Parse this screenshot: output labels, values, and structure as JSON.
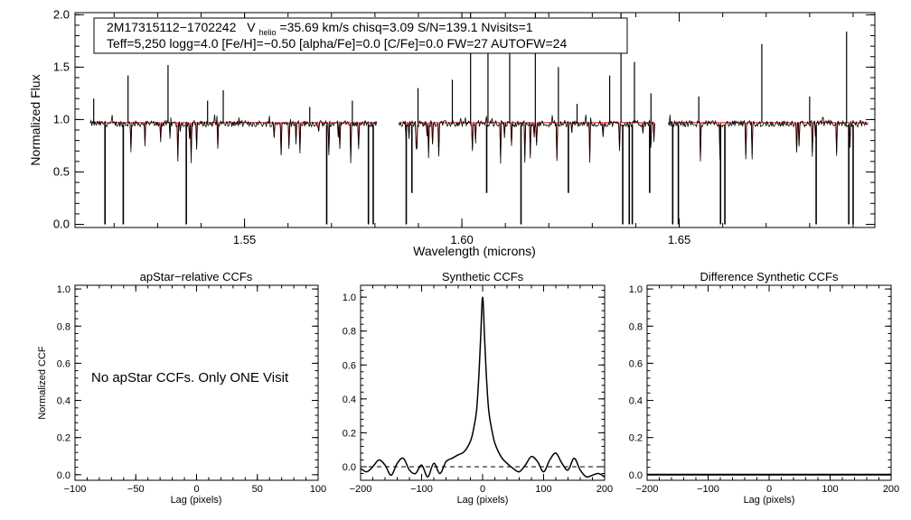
{
  "chart_data": [
    {
      "type": "line",
      "id": "spectrum",
      "title": "",
      "xlabel": "Wavelength (microns)",
      "ylabel": "Normalized Flux",
      "xlim": [
        1.511,
        1.695
      ],
      "ylim": [
        -0.03,
        2.02
      ],
      "xticks": [
        1.55,
        1.6,
        1.65
      ],
      "xtick_labels": [
        "1.55",
        "1.60",
        "1.65"
      ],
      "yticks": [
        0.0,
        0.5,
        1.0,
        1.5,
        2.0
      ],
      "ytick_labels": [
        "0.0",
        "0.5",
        "1.0",
        "1.5",
        "2.0"
      ],
      "legend_box": {
        "line1": {
          "star": "2M17315112−1702242",
          "v": "V",
          "v_sub": "helio",
          "v_rest": "=35.69 km/s  chisq=3.09  S/N=139.1  Nvisits=1"
        },
        "line2": "Teff=5,250 logg=4.0 [Fe/H]=−0.50 [alpha/Fe]=0.0 [C/Fe]=0.0 FW=27 AUTOFW=24"
      },
      "chips": [
        [
          1.5145,
          1.5805
        ],
        [
          1.5855,
          1.6445
        ],
        [
          1.6475,
          1.6935
        ]
      ],
      "observed_color": "#000000",
      "model_color": "#d00000",
      "absorption_lines": [
        {
          "x": 1.5179,
          "y": 0.0
        },
        {
          "x": 1.5221,
          "y": 0.0
        },
        {
          "x": 1.5366,
          "y": 0.0
        },
        {
          "x": 1.5689,
          "y": 0.0
        },
        {
          "x": 1.5785,
          "y": 0.0
        },
        {
          "x": 1.5796,
          "y": 0.0
        },
        {
          "x": 1.5872,
          "y": 0.0
        },
        {
          "x": 1.5885,
          "y": 0.3
        },
        {
          "x": 1.6057,
          "y": 0.3
        },
        {
          "x": 1.6136,
          "y": 0.0
        },
        {
          "x": 1.6245,
          "y": 0.3
        },
        {
          "x": 1.637,
          "y": 0.0
        },
        {
          "x": 1.6385,
          "y": 0.0
        },
        {
          "x": 1.6392,
          "y": 0.0
        },
        {
          "x": 1.6432,
          "y": 0.3
        },
        {
          "x": 1.6485,
          "y": 0.0
        },
        {
          "x": 1.6498,
          "y": 0.0
        },
        {
          "x": 1.6595,
          "y": 0.0
        },
        {
          "x": 1.6605,
          "y": 0.0
        },
        {
          "x": 1.6815,
          "y": 0.0
        },
        {
          "x": 1.689,
          "y": 0.0
        },
        {
          "x": 1.69,
          "y": 0.0
        }
      ],
      "emission_spikes": [
        {
          "x": 1.5153,
          "y": 1.2
        },
        {
          "x": 1.5232,
          "y": 1.42
        },
        {
          "x": 1.5324,
          "y": 1.52
        },
        {
          "x": 1.5415,
          "y": 1.18
        },
        {
          "x": 1.5451,
          "y": 1.28
        },
        {
          "x": 1.565,
          "y": 1.12
        },
        {
          "x": 1.5748,
          "y": 1.18
        },
        {
          "x": 1.5899,
          "y": 1.3
        },
        {
          "x": 1.5978,
          "y": 1.38
        },
        {
          "x": 1.602,
          "y": 2.02
        },
        {
          "x": 1.606,
          "y": 1.72
        },
        {
          "x": 1.611,
          "y": 1.7
        },
        {
          "x": 1.6169,
          "y": 2.02
        },
        {
          "x": 1.6222,
          "y": 1.5
        },
        {
          "x": 1.6265,
          "y": 1.15
        },
        {
          "x": 1.634,
          "y": 1.42
        },
        {
          "x": 1.6366,
          "y": 2.02
        },
        {
          "x": 1.6397,
          "y": 1.55
        },
        {
          "x": 1.6435,
          "y": 1.25
        },
        {
          "x": 1.6545,
          "y": 1.22
        },
        {
          "x": 1.669,
          "y": 1.72
        },
        {
          "x": 1.68,
          "y": 1.22
        },
        {
          "x": 1.6885,
          "y": 1.84
        }
      ]
    },
    {
      "type": "line",
      "id": "apstar_ccf",
      "title": "apStar−relative CCFs",
      "xlabel": "Lag (pixels)",
      "ylabel": "Normalized CCF",
      "xlim": [
        -100,
        100
      ],
      "ylim": [
        -0.03,
        1.02
      ],
      "xticks": [
        -100,
        -50,
        0,
        50,
        100
      ],
      "xtick_labels": [
        "−100",
        "−50",
        "0",
        "50",
        "100"
      ],
      "yticks": [
        0.0,
        0.2,
        0.4,
        0.6,
        0.8,
        1.0
      ],
      "ytick_labels": [
        "0.0",
        "0.2",
        "0.4",
        "0.6",
        "0.8",
        "1.0"
      ],
      "annotation": "No apStar CCFs.  Only ONE Visit",
      "series": []
    },
    {
      "type": "line",
      "id": "synthetic_ccf",
      "title": "Synthetic CCFs",
      "xlabel": "Lag (pixels)",
      "ylabel": "",
      "xlim": [
        -200,
        200
      ],
      "ylim": [
        -0.08,
        1.07
      ],
      "xticks": [
        -200,
        -100,
        0,
        100,
        200
      ],
      "xtick_labels": [
        "−200",
        "−100",
        "0",
        "100",
        "200"
      ],
      "yticks": [
        0.0,
        0.2,
        0.4,
        0.6,
        0.8,
        1.0
      ],
      "ytick_labels": [
        "0.0",
        "0.2",
        "0.4",
        "0.6",
        "0.8",
        "1.0"
      ],
      "reference_line_y": 0.0,
      "peak": {
        "x": 0,
        "y": 1.0
      },
      "series": [
        {
          "x": [
            -200,
            -190,
            -180,
            -170,
            -160,
            -150,
            -140,
            -130,
            -120,
            -110,
            -100,
            -90,
            -80,
            -70,
            -60,
            -50,
            -40,
            -30,
            -20,
            -15,
            -10,
            -6,
            -3,
            0,
            3,
            6,
            10,
            15,
            20,
            30,
            40,
            50,
            60,
            70,
            80,
            90,
            100,
            110,
            120,
            130,
            140,
            150,
            160,
            170,
            180,
            190,
            200
          ],
          "y": [
            -0.01,
            -0.03,
            0.0,
            0.04,
            0.01,
            -0.05,
            0.02,
            0.05,
            -0.02,
            -0.04,
            0.01,
            -0.06,
            0.02,
            -0.04,
            0.03,
            0.05,
            0.07,
            0.09,
            0.15,
            0.22,
            0.33,
            0.55,
            0.78,
            1.0,
            0.78,
            0.55,
            0.33,
            0.22,
            0.14,
            0.06,
            0.02,
            -0.01,
            -0.03,
            0.01,
            0.06,
            0.03,
            -0.03,
            0.04,
            0.08,
            0.02,
            -0.02,
            0.05,
            -0.02,
            -0.06,
            -0.05,
            -0.04,
            -0.06
          ]
        }
      ]
    },
    {
      "type": "line",
      "id": "difference_ccf",
      "title": "Difference Synthetic CCFs",
      "xlabel": "Lag (pixels)",
      "ylabel": "",
      "xlim": [
        -200,
        200
      ],
      "ylim": [
        -0.03,
        1.02
      ],
      "xticks": [
        -200,
        -100,
        0,
        100,
        200
      ],
      "xtick_labels": [
        "−200",
        "−100",
        "0",
        "100",
        "200"
      ],
      "yticks": [
        0.0,
        0.2,
        0.4,
        0.6,
        0.8,
        1.0
      ],
      "ytick_labels": [
        "0.0",
        "0.2",
        "0.4",
        "0.6",
        "0.8",
        "1.0"
      ],
      "series": [
        {
          "x": [
            -200,
            200
          ],
          "y": [
            0.0,
            0.0
          ]
        }
      ]
    }
  ]
}
